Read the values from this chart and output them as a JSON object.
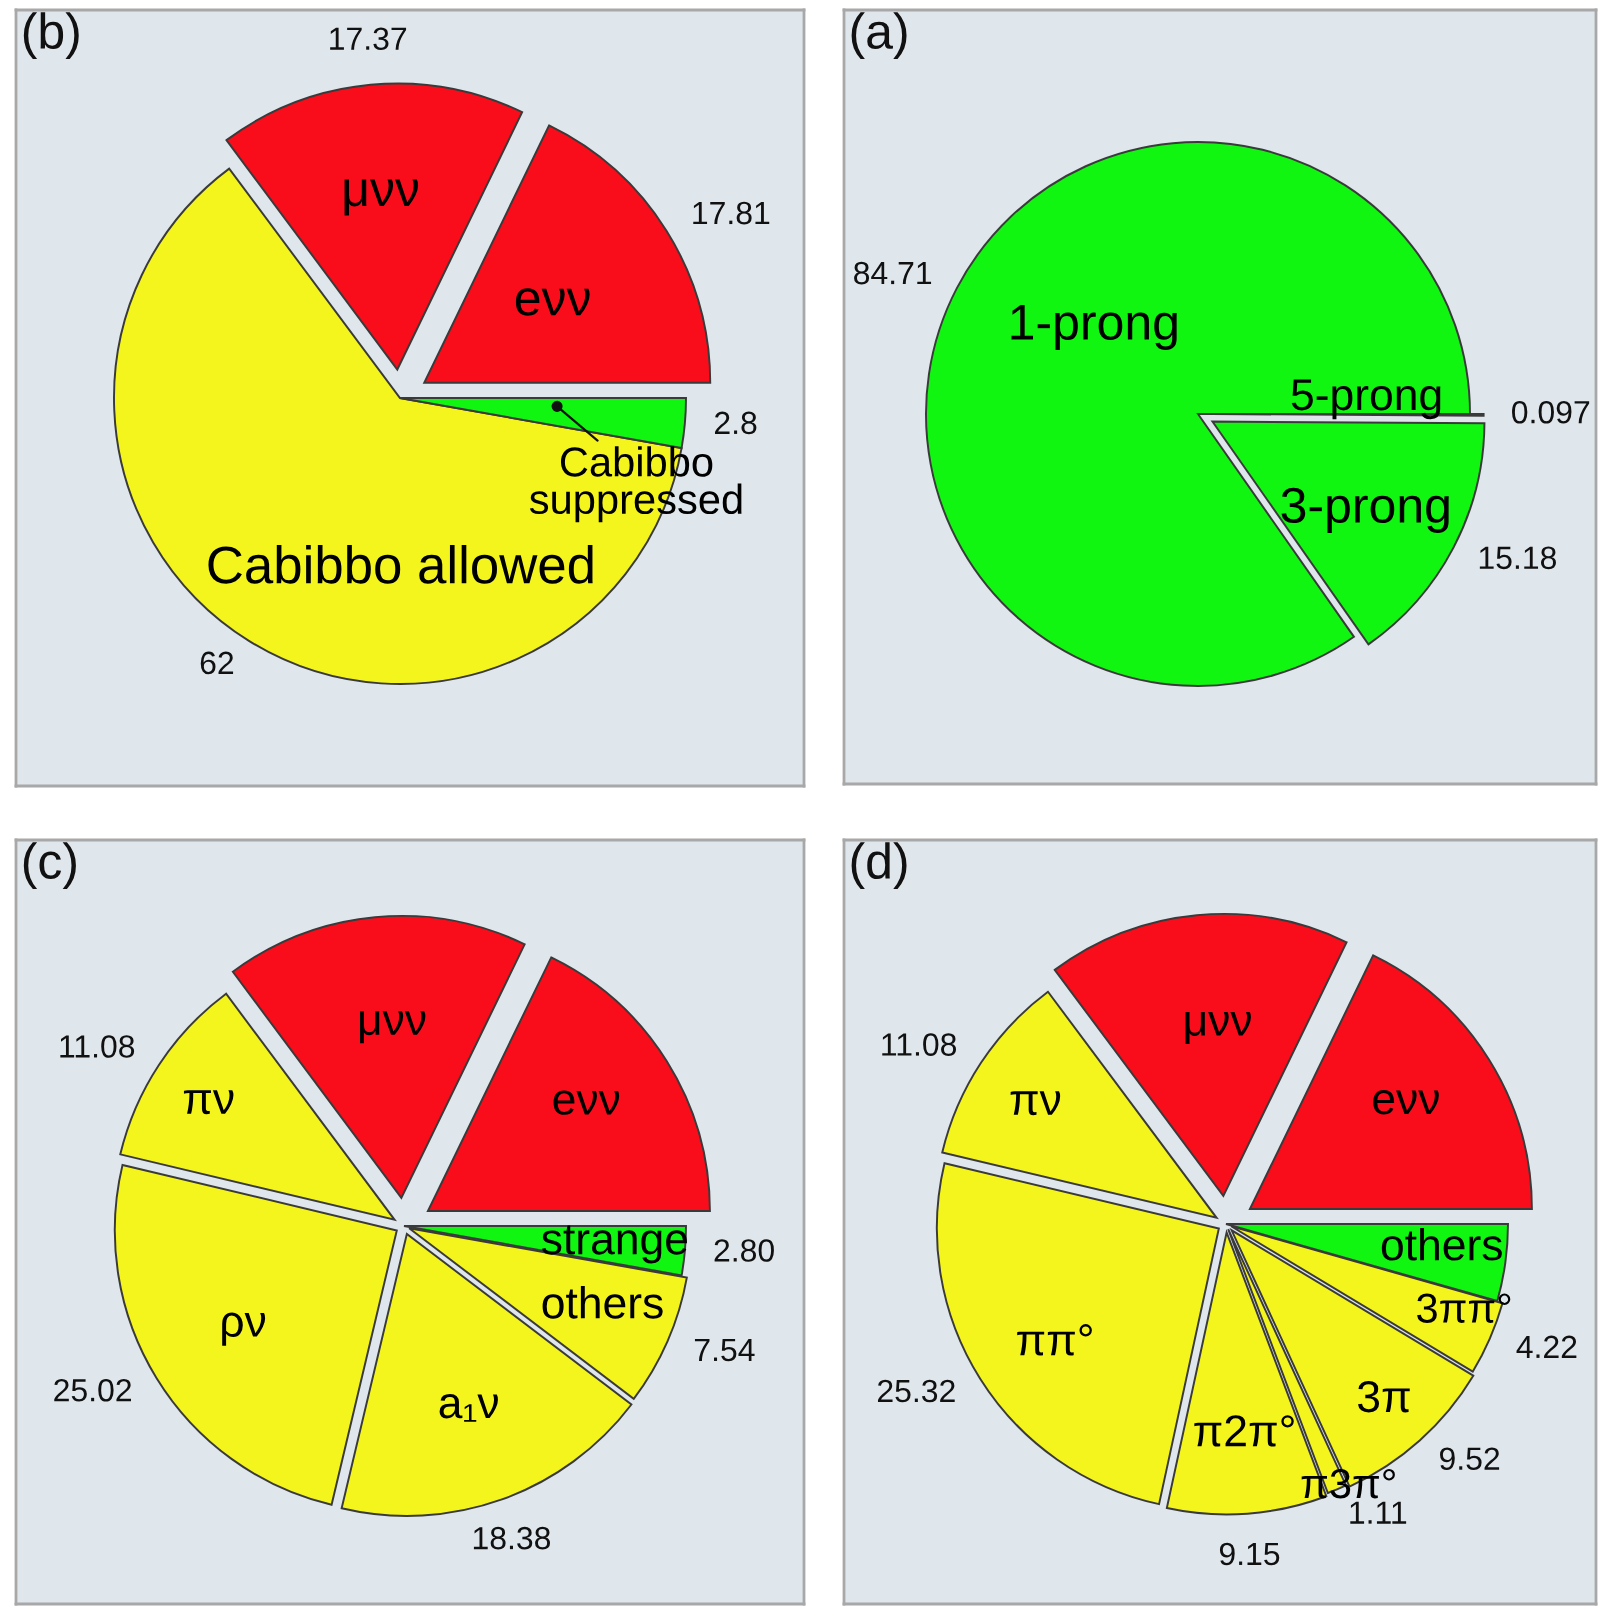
{
  "chart_data": [
    {
      "type": "pie",
      "title": "(b)",
      "categories": [
        "eνν",
        "μνν",
        "Cabibbo allowed",
        "Cabibbo suppressed"
      ],
      "values": [
        17.81,
        17.37,
        62,
        2.8
      ],
      "colors": [
        "#fa0d1b",
        "#fa0d1b",
        "#f5f51e",
        "#11f611"
      ],
      "value_labels": [
        "17.81",
        "17.37",
        "62",
        "2.8"
      ]
    },
    {
      "type": "pie",
      "title": "(a)",
      "categories": [
        "1-prong",
        "3-prong",
        "5-prong"
      ],
      "values": [
        84.71,
        15.18,
        0.097
      ],
      "colors": [
        "#11f611",
        "#11f611",
        "#11f611"
      ],
      "value_labels": [
        "84.71",
        "15.18",
        "0.097"
      ]
    },
    {
      "type": "pie",
      "title": "(c)",
      "categories": [
        "eνν",
        "μνν",
        "πν",
        "ρν",
        "a₁ν",
        "others",
        "strange"
      ],
      "values": [
        17.8,
        17.4,
        11.08,
        25.02,
        18.38,
        7.54,
        2.8
      ],
      "colors": [
        "#fa0d1b",
        "#fa0d1b",
        "#f5f51e",
        "#f5f51e",
        "#f5f51e",
        "#f5f51e",
        "#11f611"
      ],
      "value_labels": [
        null,
        null,
        "11.08",
        "25.02",
        "18.38",
        "7.54",
        "2.80"
      ]
    },
    {
      "type": "pie",
      "title": "(d)",
      "categories": [
        "eνν",
        "μνν",
        "πν",
        "ππ°",
        "π2π°",
        "π3π°",
        "3π",
        "3ππ°",
        "others"
      ],
      "values": [
        17.8,
        17.4,
        11.08,
        25.32,
        9.15,
        1.11,
        9.52,
        4.22,
        4.4
      ],
      "colors": [
        "#fa0d1b",
        "#fa0d1b",
        "#f5f51e",
        "#f5f51e",
        "#f5f51e",
        "#f5f51e",
        "#f5f51e",
        "#f5f51e",
        "#11f611"
      ],
      "value_labels": [
        null,
        null,
        "11.08",
        "25.32",
        "9.15",
        "1.11",
        "9.52",
        "4.22",
        null
      ]
    }
  ]
}
